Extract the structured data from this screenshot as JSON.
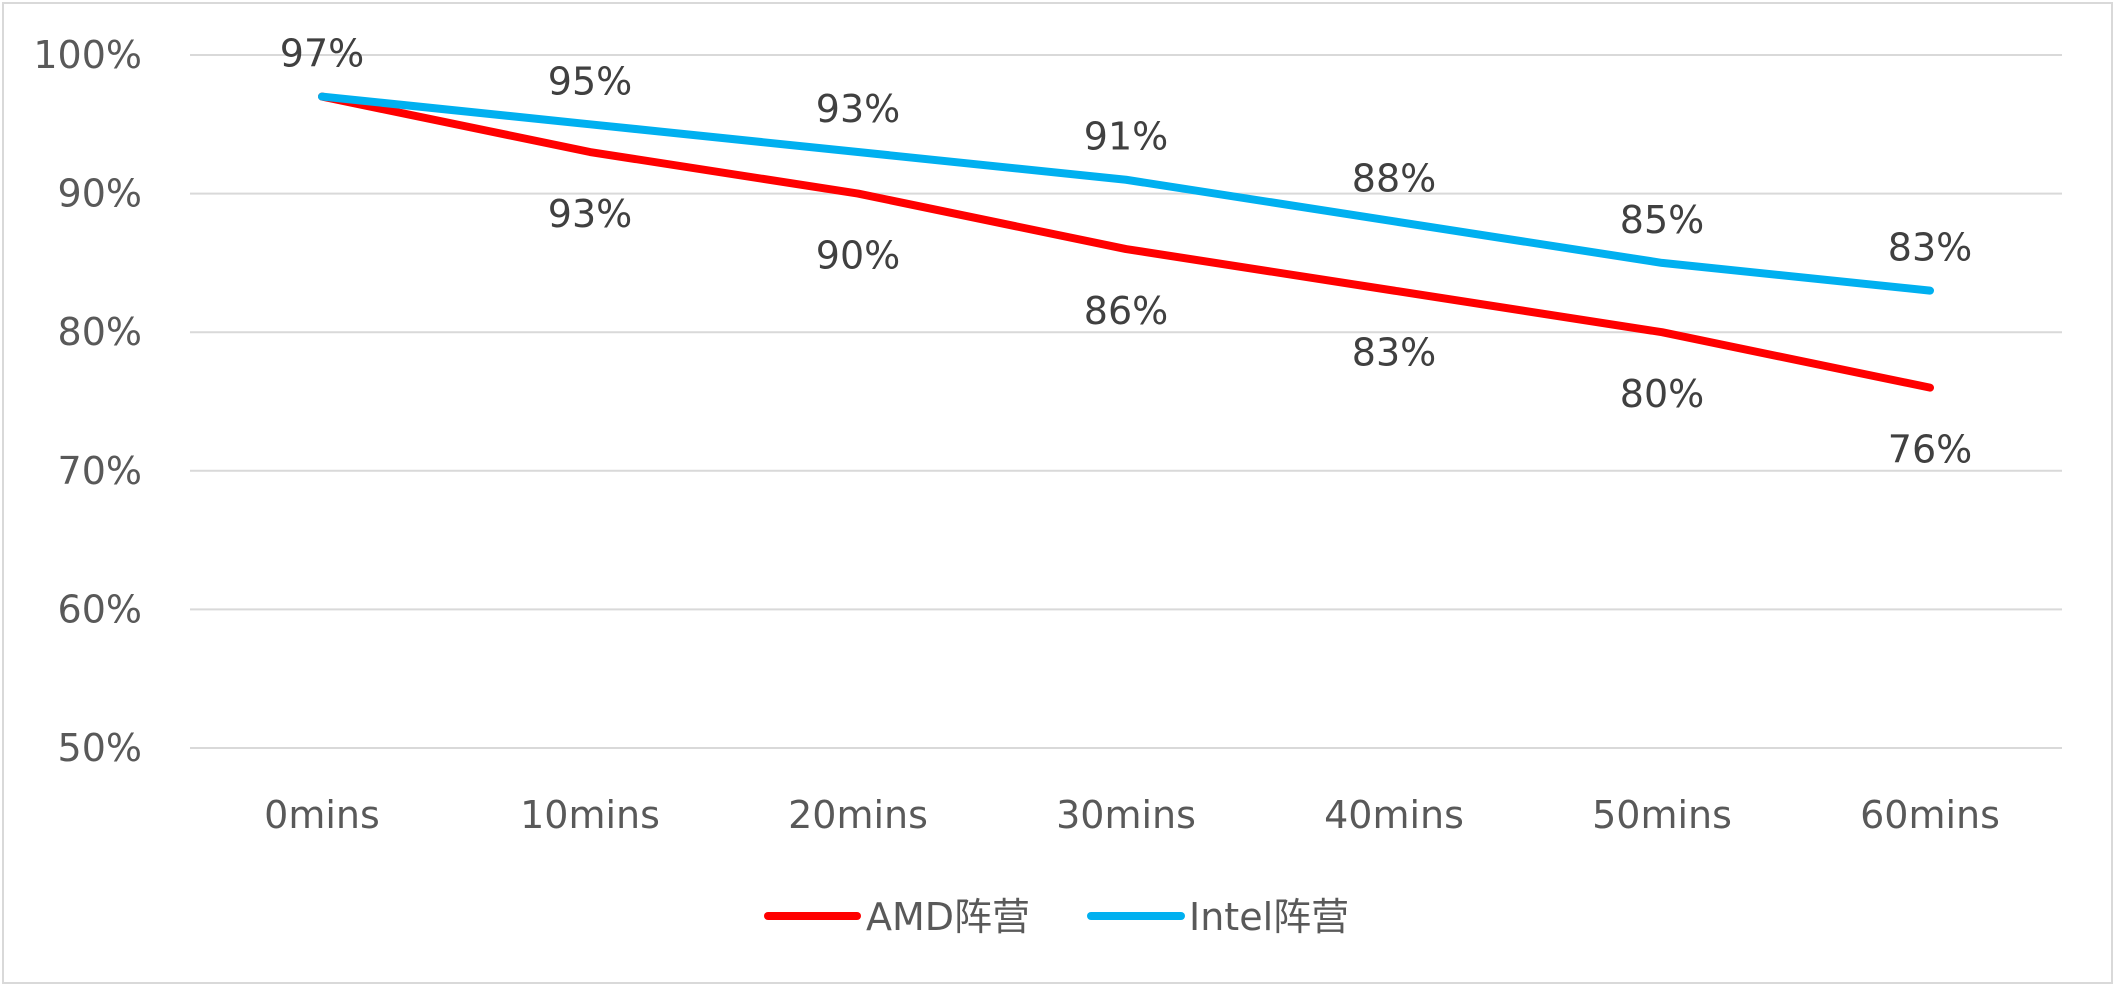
{
  "chart_data": {
    "type": "line",
    "title": "",
    "xlabel": "",
    "ylabel": "",
    "categories": [
      "0mins",
      "10mins",
      "20mins",
      "30mins",
      "40mins",
      "50mins",
      "60mins"
    ],
    "ylim": [
      50,
      100
    ],
    "yticks": [
      50,
      60,
      70,
      80,
      90,
      100
    ],
    "ytick_labels": [
      "50%",
      "60%",
      "70%",
      "80%",
      "90%",
      "100%"
    ],
    "grid": "horizontal",
    "legend_position": "bottom",
    "series": [
      {
        "name": "AMD阵营",
        "color": "#ff0000",
        "values": [
          97,
          93,
          90,
          86,
          83,
          80,
          76
        ],
        "labels": [
          "",
          "93%",
          "90%",
          "86%",
          "83%",
          "80%",
          "76%"
        ],
        "label_position": "below"
      },
      {
        "name": "Intel阵营",
        "color": "#00b0f0",
        "values": [
          97,
          95,
          93,
          91,
          88,
          85,
          83
        ],
        "labels": [
          "97%",
          "95%",
          "93%",
          "91%",
          "88%",
          "85%",
          "83%"
        ],
        "label_position": "above"
      }
    ]
  }
}
